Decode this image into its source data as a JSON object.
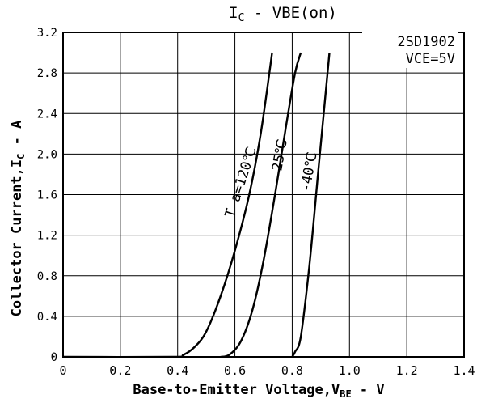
{
  "chart_data": {
    "type": "line",
    "title": "IC - VBE(on)",
    "title_parts": {
      "main": "I",
      "sub": "C",
      "rest": " - VBE(on)"
    },
    "xlabel": "Base-to-Emitter Voltage,V",
    "xlabel_sub": "BE",
    "xlabel_unit": " - V",
    "ylabel": "Collector Current,I",
    "ylabel_sub": "C",
    "ylabel_unit": " - A",
    "xlim": [
      0,
      1.4
    ],
    "ylim": [
      0,
      3.2
    ],
    "x_ticks": [
      "0",
      "0.2",
      "0.4",
      "0.6",
      "0.8",
      "1.0",
      "1.2",
      "1.4"
    ],
    "y_ticks": [
      "0",
      "0.4",
      "0.8",
      "1.2",
      "1.6",
      "2.0",
      "2.4",
      "2.8",
      "3.2"
    ],
    "grid": true,
    "annotations": {
      "part": "2SD1902",
      "condition": "VCE=5V"
    },
    "series": [
      {
        "name": "Ta=120°C",
        "label": "T a=120℃",
        "points": [
          [
            0,
            0
          ],
          [
            0.38,
            0
          ],
          [
            0.42,
            0.02
          ],
          [
            0.46,
            0.1
          ],
          [
            0.5,
            0.25
          ],
          [
            0.55,
            0.6
          ],
          [
            0.6,
            1.05
          ],
          [
            0.65,
            1.6
          ],
          [
            0.69,
            2.2
          ],
          [
            0.73,
            3.0
          ]
        ]
      },
      {
        "name": "25°C",
        "label": "25℃",
        "points": [
          [
            0.55,
            0
          ],
          [
            0.58,
            0.02
          ],
          [
            0.62,
            0.15
          ],
          [
            0.66,
            0.45
          ],
          [
            0.7,
            0.95
          ],
          [
            0.74,
            1.6
          ],
          [
            0.78,
            2.3
          ],
          [
            0.81,
            2.8
          ],
          [
            0.83,
            3.0
          ]
        ]
      },
      {
        "name": "-40°C",
        "label": "-40℃",
        "points": [
          [
            0.8,
            0
          ],
          [
            0.81,
            0.05
          ],
          [
            0.83,
            0.2
          ],
          [
            0.86,
            0.9
          ],
          [
            0.89,
            1.8
          ],
          [
            0.91,
            2.4
          ],
          [
            0.93,
            3.0
          ]
        ]
      }
    ]
  }
}
